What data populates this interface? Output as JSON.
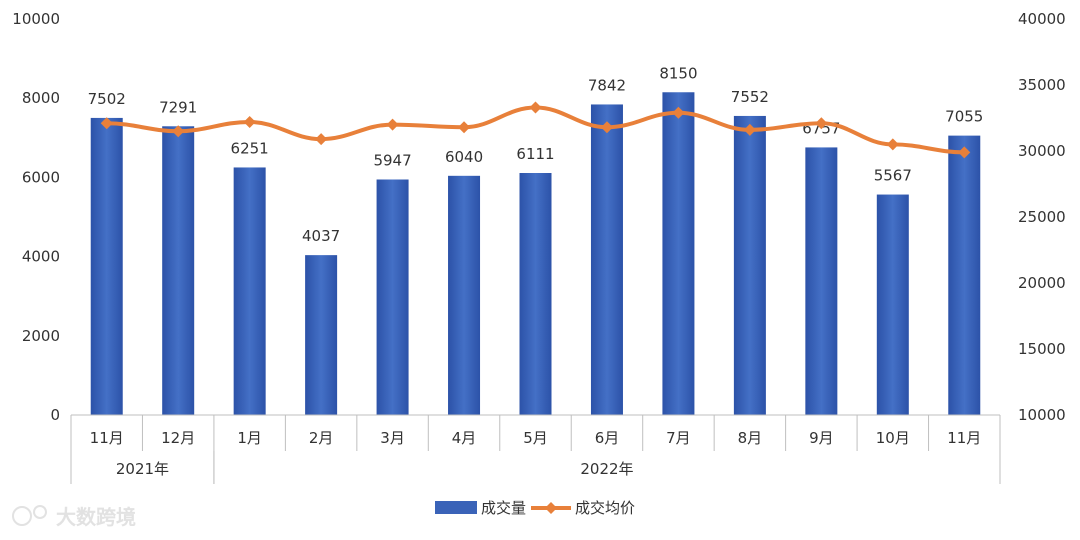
{
  "chart_data": {
    "type": "bar",
    "categories": [
      "11月",
      "12月",
      "1月",
      "2月",
      "3月",
      "4月",
      "5月",
      "6月",
      "7月",
      "8月",
      "9月",
      "10月",
      "11月"
    ],
    "groups": [
      {
        "label": "2021年",
        "from": 0,
        "to": 1
      },
      {
        "label": "2022年",
        "from": 2,
        "to": 12
      }
    ],
    "series": [
      {
        "name": "成交量",
        "type": "bar",
        "axis": "left",
        "values": [
          7502,
          7291,
          6251,
          4037,
          5947,
          6040,
          6111,
          7842,
          8150,
          7552,
          6757,
          5567,
          7055
        ]
      },
      {
        "name": "成交均价",
        "type": "line",
        "axis": "right",
        "values": [
          32100,
          31500,
          32200,
          30900,
          32000,
          31800,
          33300,
          31800,
          32900,
          31600,
          32100,
          30500,
          29900
        ]
      }
    ],
    "y_left": {
      "min": 0,
      "max": 10000,
      "ticks": [
        "0",
        "2000",
        "4000",
        "6000",
        "8000",
        "10000"
      ]
    },
    "y_right": {
      "min": 10000,
      "max": 40000,
      "ticks": [
        "10000",
        "15000",
        "20000",
        "25000",
        "30000",
        "35000",
        "40000"
      ]
    },
    "grid": false,
    "legend_position": "bottom",
    "colors": {
      "bar": "#3a63b8",
      "bar_dark": "#2b4f9e",
      "line": "#e8803a"
    }
  },
  "watermark": {
    "text": "大数跨境"
  }
}
